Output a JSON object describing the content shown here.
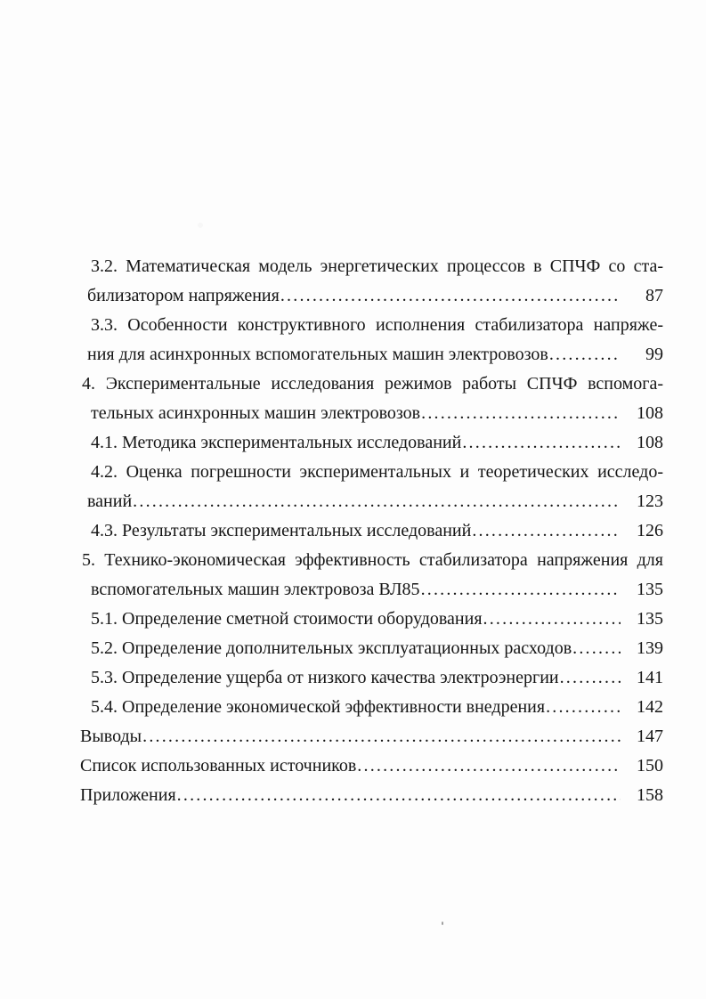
{
  "page": {
    "kind": "table-of-contents-scan",
    "background": "#fdfdfd",
    "text_color": "#151515"
  },
  "toc": {
    "entries": [
      {
        "level": "sub",
        "lines": [
          {
            "text": "3.2. Математическая модель энергетических процессов в СПЧФ со ста-",
            "justify": true
          },
          {
            "text": "билизатором напряжения",
            "leader": true,
            "page": "87",
            "cont": true
          }
        ]
      },
      {
        "level": "sub",
        "lines": [
          {
            "text": "3.3. Особенности конструктивного исполнения стабилизатора напряже-",
            "justify": true
          },
          {
            "text": "ния для асинхронных вспомогательных машин электровозов",
            "leader": true,
            "page": "99",
            "cont": true
          }
        ]
      },
      {
        "level": "chapter",
        "lines": [
          {
            "text": "4. Экспериментальные исследования режимов работы СПЧФ вспомога-",
            "justify": true
          },
          {
            "text": "тельных асинхронных машин электровозов",
            "leader": true,
            "page": "108",
            "cont": true
          }
        ]
      },
      {
        "level": "sub",
        "lines": [
          {
            "text": "4.1. Методика экспериментальных исследований",
            "leader": true,
            "page": "108"
          }
        ]
      },
      {
        "level": "sub",
        "lines": [
          {
            "text": "4.2. Оценка погрешности экспериментальных и теоретических исследо-",
            "justify": true
          },
          {
            "text": "ваний",
            "leader": true,
            "page": "123",
            "cont": true
          }
        ]
      },
      {
        "level": "sub",
        "lines": [
          {
            "text": "4.3. Результаты экспериментальных исследований",
            "leader": true,
            "page": "126"
          }
        ]
      },
      {
        "level": "chapter",
        "lines": [
          {
            "text": "5. Технико-экономическая эффективность стабилизатора напряжения для",
            "justify": true
          },
          {
            "text": "вспомогательных машин электровоза ВЛ85",
            "leader": true,
            "page": "135",
            "cont": true
          }
        ]
      },
      {
        "level": "sub",
        "lines": [
          {
            "text": "5.1. Определение сметной стоимости оборудования",
            "leader": true,
            "page": "135"
          }
        ]
      },
      {
        "level": "sub",
        "lines": [
          {
            "text": "5.2. Определение дополнительных эксплуатационных расходов",
            "leader": true,
            "page": "139"
          }
        ]
      },
      {
        "level": "sub",
        "lines": [
          {
            "text": "5.3. Определение ущерба от низкого качества электроэнергии",
            "leader": true,
            "page": "141"
          }
        ]
      },
      {
        "level": "sub",
        "lines": [
          {
            "text": "5.4. Определение экономической эффективности внедрения",
            "leader": true,
            "page": "142"
          }
        ]
      },
      {
        "level": "top",
        "lines": [
          {
            "text": "Выводы",
            "leader": true,
            "page": "147"
          }
        ]
      },
      {
        "level": "top",
        "lines": [
          {
            "text": "Список использованных источников",
            "leader": true,
            "page": "150"
          }
        ]
      },
      {
        "level": "top",
        "lines": [
          {
            "text": "Приложения",
            "leader": true,
            "page": "158"
          }
        ]
      }
    ]
  }
}
